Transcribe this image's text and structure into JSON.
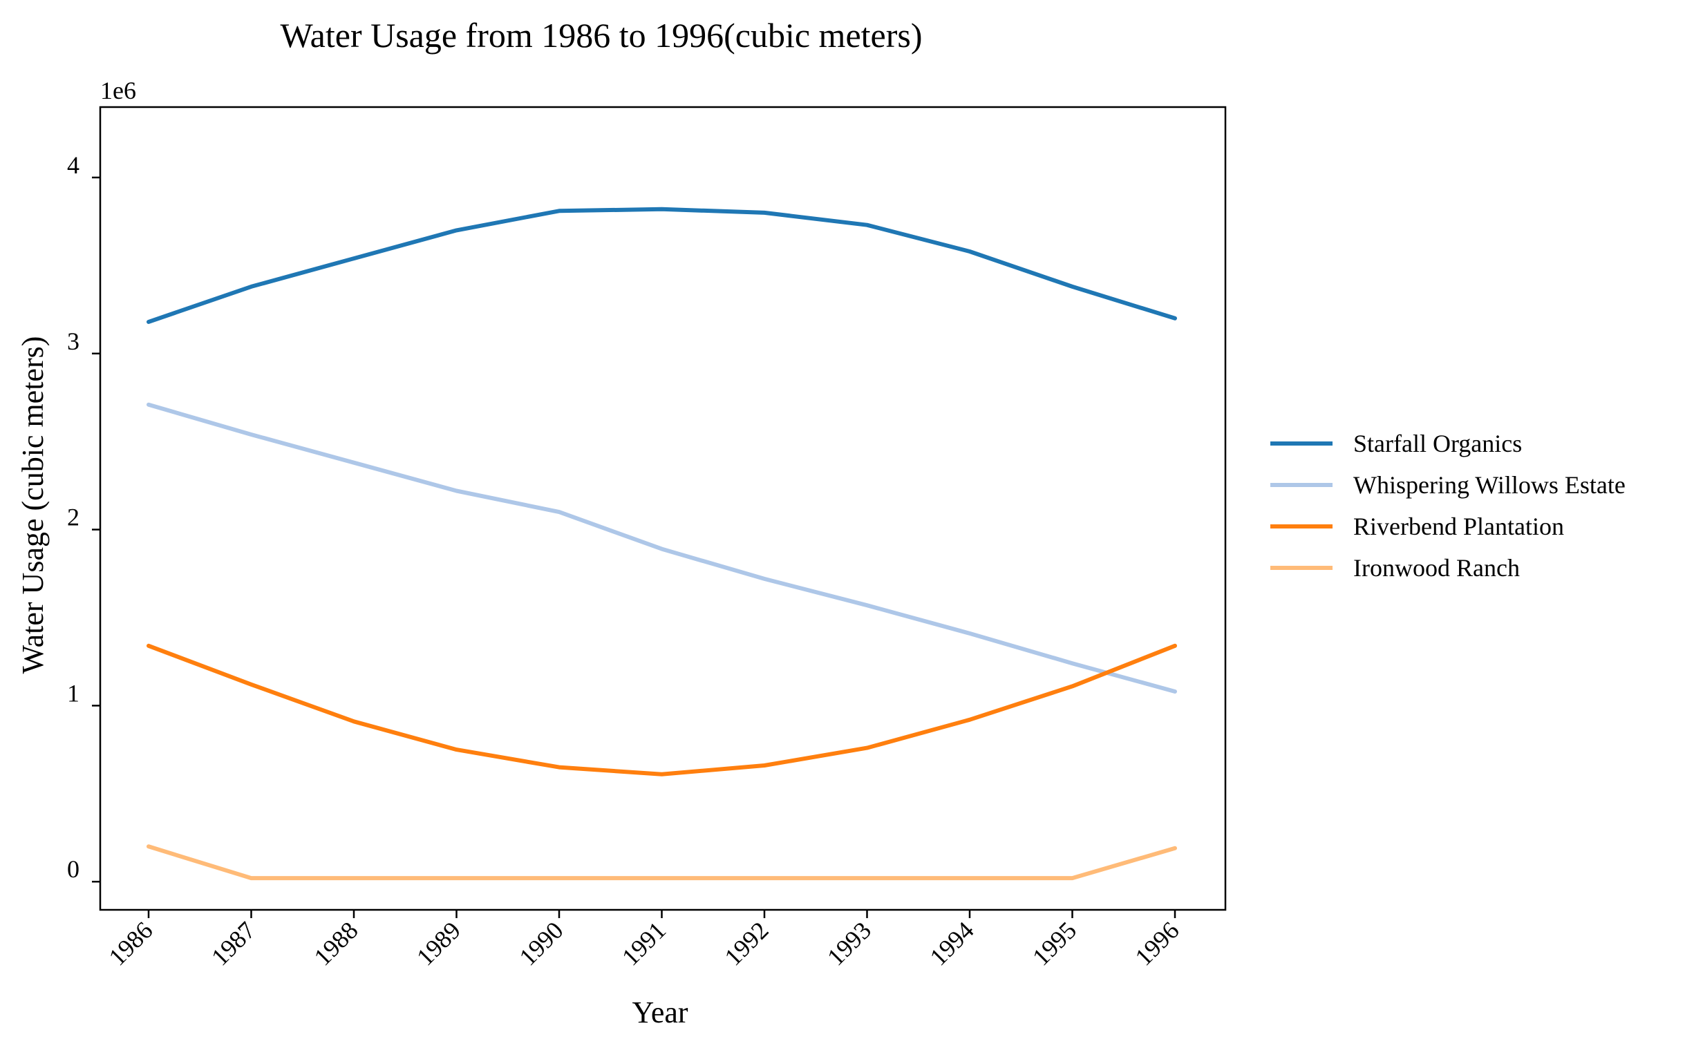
{
  "chart_data": {
    "type": "line",
    "title": "Water Usage from 1986 to 1996(cubic meters)",
    "xlabel": "Year",
    "ylabel": "Water Usage (cubic meters)",
    "y_offset_label": "1e6",
    "categories": [
      "1986",
      "1987",
      "1988",
      "1989",
      "1990",
      "1991",
      "1992",
      "1993",
      "1994",
      "1995",
      "1996"
    ],
    "ylim": [
      -160000,
      4400000
    ],
    "yticks": [
      0,
      1000000,
      2000000,
      3000000,
      4000000
    ],
    "ytick_labels": [
      "0",
      "1",
      "2",
      "3",
      "4"
    ],
    "grid": false,
    "legend_position": "right",
    "series": [
      {
        "name": "Starfall Organics",
        "color": "#1f77b4",
        "values": [
          3180000,
          3380000,
          3540000,
          3700000,
          3810000,
          3820000,
          3800000,
          3730000,
          3580000,
          3380000,
          3200000
        ]
      },
      {
        "name": "Whispering Willows Estate",
        "color": "#aec7e8",
        "values": [
          2710000,
          2540000,
          2380000,
          2220000,
          2100000,
          1890000,
          1720000,
          1570000,
          1410000,
          1240000,
          1080000
        ]
      },
      {
        "name": "Riverbend Plantation",
        "color": "#ff7f0e",
        "values": [
          1340000,
          1120000,
          910000,
          750000,
          650000,
          610000,
          660000,
          760000,
          920000,
          1110000,
          1340000
        ]
      },
      {
        "name": "Ironwood Ranch",
        "color": "#ffbb78",
        "values": [
          200000,
          20000,
          20000,
          20000,
          20000,
          20000,
          20000,
          20000,
          20000,
          20000,
          190000
        ]
      }
    ]
  }
}
